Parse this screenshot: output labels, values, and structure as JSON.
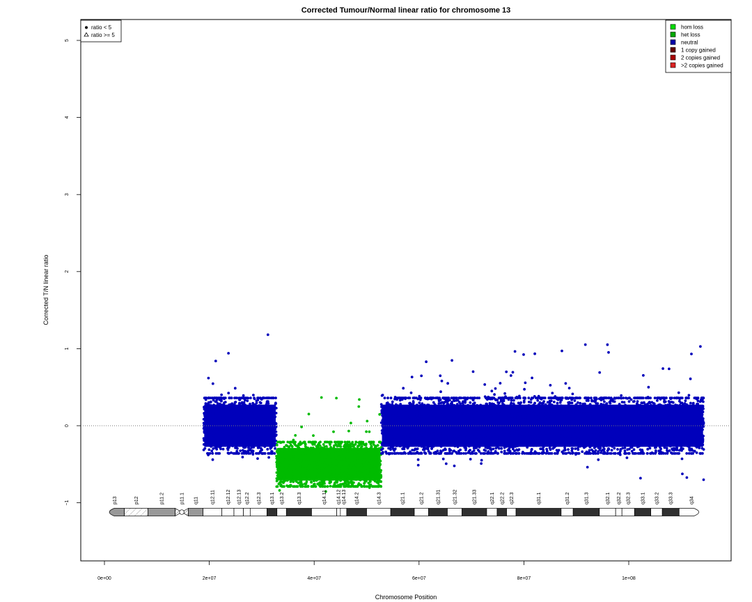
{
  "chart_data": {
    "type": "scatter",
    "title": "Corrected Tumour/Normal linear ratio for chromosome  13",
    "xlabel": "Chromosome Position",
    "ylabel": "Corrected T/N linear ratio",
    "xlim": [
      0,
      115000000
    ],
    "ylim": [
      -1.8,
      5.2
    ],
    "x_ticks": [
      {
        "value": 0,
        "label": "0e+00"
      },
      {
        "value": 20000000,
        "label": "2e+07"
      },
      {
        "value": 40000000,
        "label": "4e+07"
      },
      {
        "value": 60000000,
        "label": "6e+07"
      },
      {
        "value": 80000000,
        "label": "8e+07"
      },
      {
        "value": 100000000,
        "label": "1e+08"
      }
    ],
    "y_ticks": [
      {
        "value": -1,
        "label": "−1"
      },
      {
        "value": 0,
        "label": "0"
      },
      {
        "value": 1,
        "label": "1"
      },
      {
        "value": 2,
        "label": "2"
      },
      {
        "value": 3,
        "label": "3"
      },
      {
        "value": 4,
        "label": "4"
      },
      {
        "value": 5,
        "label": "5"
      }
    ],
    "reference_line": 0,
    "series": [
      {
        "name": "neutral",
        "color": "#0000bb",
        "x_range": [
          18900000,
          32800000
        ],
        "mean": 0.0,
        "spread": 0.5,
        "max_outlier": 1.43,
        "min_outlier": -0.53
      },
      {
        "name": "het loss",
        "color": "#00bb00",
        "x_range": [
          32800000,
          52800000
        ],
        "mean": -0.5,
        "spread": 0.4,
        "max_outlier": 0.48,
        "min_outlier": -0.87
      },
      {
        "name": "neutral",
        "color": "#0000bb",
        "x_range": [
          52800000,
          114300000
        ],
        "mean": 0.0,
        "spread": 0.5,
        "max_outlier": 1.06,
        "min_outlier": -0.71
      }
    ],
    "shape_legend": {
      "position": "top-left",
      "items": [
        {
          "symbol": "circle",
          "label": "ratio < 5"
        },
        {
          "symbol": "triangle",
          "label": "ratio >= 5"
        }
      ]
    },
    "color_legend": {
      "position": "top-right",
      "items": [
        {
          "label": "hom loss",
          "color": "#00dd00"
        },
        {
          "label": "het loss",
          "color": "#00aa00"
        },
        {
          "label": "neutral",
          "color": "#0000aa"
        },
        {
          "label": "1 copy gained",
          "color": "#660000"
        },
        {
          "label": "2 copies gained",
          "color": "#aa0000"
        },
        {
          "label": ">2 copies gained",
          "color": "#dd2222"
        }
      ]
    },
    "ideogram": {
      "bands": [
        {
          "name": "p13",
          "start": 0,
          "end": 3800000,
          "stain": "gvar"
        },
        {
          "name": "p12",
          "start": 3800000,
          "end": 8300000,
          "stain": "stalk"
        },
        {
          "name": "p11.2",
          "start": 8300000,
          "end": 13500000,
          "stain": "gvar"
        },
        {
          "name": "p11.1",
          "start": 13500000,
          "end": 16000000,
          "stain": "acen"
        },
        {
          "name": "q11",
          "start": 16000000,
          "end": 18800000,
          "stain": "gvar"
        },
        {
          "name": "q12.11",
          "start": 18800000,
          "end": 22400000,
          "stain": "gneg"
        },
        {
          "name": "q12.12",
          "start": 22400000,
          "end": 24700000,
          "stain": "gpos25"
        },
        {
          "name": "q12.13",
          "start": 24700000,
          "end": 26500000,
          "stain": "gneg"
        },
        {
          "name": "q12.2",
          "start": 26500000,
          "end": 27800000,
          "stain": "gpos25"
        },
        {
          "name": "q12.3",
          "start": 27800000,
          "end": 31000000,
          "stain": "gneg"
        },
        {
          "name": "q13.1",
          "start": 31000000,
          "end": 32900000,
          "stain": "gpos50"
        },
        {
          "name": "q13.2",
          "start": 32900000,
          "end": 34700000,
          "stain": "gneg"
        },
        {
          "name": "q13.3",
          "start": 34700000,
          "end": 39500000,
          "stain": "gpos75"
        },
        {
          "name": "q14.11",
          "start": 39500000,
          "end": 44300000,
          "stain": "gneg"
        },
        {
          "name": "q14.12",
          "start": 44300000,
          "end": 45000000,
          "stain": "gpos25"
        },
        {
          "name": "q14.13",
          "start": 45000000,
          "end": 46200000,
          "stain": "gneg"
        },
        {
          "name": "q14.2",
          "start": 46200000,
          "end": 50000000,
          "stain": "gpos50"
        },
        {
          "name": "q14.3",
          "start": 50000000,
          "end": 54600000,
          "stain": "gneg"
        },
        {
          "name": "q21.1",
          "start": 54600000,
          "end": 59100000,
          "stain": "gpos100"
        },
        {
          "name": "q21.2",
          "start": 59100000,
          "end": 61800000,
          "stain": "gneg"
        },
        {
          "name": "q21.31",
          "start": 61800000,
          "end": 65400000,
          "stain": "gpos75"
        },
        {
          "name": "q21.32",
          "start": 65400000,
          "end": 68200000,
          "stain": "gneg"
        },
        {
          "name": "q21.33",
          "start": 68200000,
          "end": 72900000,
          "stain": "gpos100"
        },
        {
          "name": "q22.1",
          "start": 72900000,
          "end": 74900000,
          "stain": "gneg"
        },
        {
          "name": "q22.2",
          "start": 74900000,
          "end": 76700000,
          "stain": "gpos50"
        },
        {
          "name": "q22.3",
          "start": 76700000,
          "end": 78500000,
          "stain": "gneg"
        },
        {
          "name": "q31.1",
          "start": 78500000,
          "end": 87100000,
          "stain": "gpos100"
        },
        {
          "name": "q31.2",
          "start": 87100000,
          "end": 89400000,
          "stain": "gneg"
        },
        {
          "name": "q31.3",
          "start": 89400000,
          "end": 94400000,
          "stain": "gpos100"
        },
        {
          "name": "q32.1",
          "start": 94400000,
          "end": 97500000,
          "stain": "gneg"
        },
        {
          "name": "q32.2",
          "start": 97500000,
          "end": 98700000,
          "stain": "gpos25"
        },
        {
          "name": "q32.3",
          "start": 98700000,
          "end": 101100000,
          "stain": "gneg"
        },
        {
          "name": "q33.1",
          "start": 101100000,
          "end": 104200000,
          "stain": "gpos100"
        },
        {
          "name": "q33.2",
          "start": 104200000,
          "end": 106400000,
          "stain": "gneg"
        },
        {
          "name": "q33.3",
          "start": 106400000,
          "end": 109600000,
          "stain": "gpos100"
        },
        {
          "name": "q34",
          "start": 109600000,
          "end": 114300000,
          "stain": "gneg"
        }
      ]
    }
  }
}
